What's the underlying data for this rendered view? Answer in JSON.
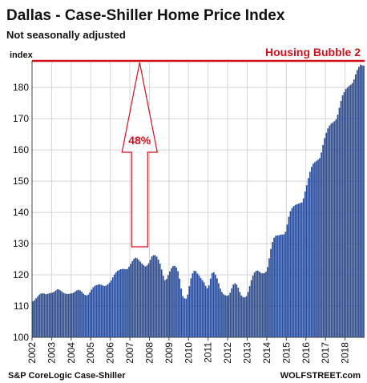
{
  "chart_data": {
    "type": "bar",
    "title": "Dallas - Case-Shiller Home Price Index",
    "subtitle": "Not seasonally adjusted",
    "ylabel": "index",
    "ylim": [
      100,
      188
    ],
    "yticks": [
      100,
      110,
      120,
      130,
      140,
      150,
      160,
      170,
      180
    ],
    "x_tick_labels": [
      "2002",
      "2003",
      "2004",
      "2005",
      "2006",
      "2007",
      "2008",
      "2009",
      "2010",
      "2011",
      "2012",
      "2013",
      "2014",
      "2015",
      "2016",
      "2017",
      "2018"
    ],
    "grid": true,
    "bar_color": "#2d4f9a",
    "annotation_color": "#d0121b",
    "x_start_year": 2002,
    "reference_line": {
      "value": 188.5,
      "label": "Housing Bubble 2"
    },
    "arrow": {
      "year": 2007.5,
      "from": 129,
      "to": 188,
      "label": "48%"
    },
    "source": "S&P CoreLogic Case-Shiller",
    "brand": "WOLFSTREET.com",
    "series": [
      {
        "values": [
          111.5,
          111.9,
          112.5,
          113.1,
          113.7,
          114.0,
          114.1,
          114.0,
          113.8,
          113.9,
          114.1,
          114.2,
          114.3,
          114.6,
          115.0,
          115.4,
          115.3,
          115.0,
          114.6,
          114.2,
          114.0,
          113.9,
          113.9,
          114.0,
          114.1,
          114.3,
          114.7,
          115.0,
          115.2,
          115.0,
          114.6,
          114.0,
          113.6,
          113.4,
          113.7,
          114.4,
          115.3,
          116.0,
          116.5,
          116.7,
          116.9,
          117.0,
          116.8,
          116.6,
          116.4,
          116.6,
          117.0,
          117.5,
          118.2,
          119.2,
          120.1,
          120.8,
          121.3,
          121.6,
          121.8,
          121.9,
          121.9,
          121.8,
          121.9,
          122.6,
          123.5,
          124.4,
          125.1,
          125.5,
          125.3,
          124.8,
          124.2,
          123.6,
          123.1,
          122.7,
          123.0,
          123.7,
          124.8,
          125.9,
          126.3,
          126.3,
          125.8,
          124.9,
          123.6,
          121.7,
          119.7,
          118.3,
          118.7,
          119.9,
          121.1,
          122.1,
          122.8,
          122.9,
          122.4,
          121.2,
          118.8,
          115.6,
          113.2,
          112.5,
          112.4,
          113.7,
          116.4,
          118.9,
          120.5,
          121.3,
          121.2,
          120.4,
          119.8,
          119.0,
          118.3,
          117.6,
          116.5,
          115.7,
          116.6,
          118.8,
          120.6,
          120.8,
          120.1,
          118.9,
          117.3,
          115.6,
          114.5,
          113.8,
          113.5,
          113.3,
          113.5,
          114.3,
          115.7,
          116.9,
          117.3,
          116.9,
          115.9,
          114.5,
          113.4,
          112.9,
          112.8,
          113.2,
          114.5,
          116.4,
          118.3,
          119.8,
          120.8,
          121.3,
          121.4,
          121.0,
          120.6,
          120.5,
          120.6,
          121.0,
          122.5,
          125.3,
          128.3,
          130.5,
          131.9,
          132.5,
          132.6,
          132.7,
          132.9,
          132.9,
          133.0,
          133.8,
          136.1,
          138.6,
          140.4,
          141.4,
          142.0,
          142.4,
          142.6,
          142.8,
          143.0,
          143.2,
          144.5,
          146.7,
          148.7,
          151.0,
          153.0,
          154.6,
          155.6,
          156.1,
          156.5,
          156.9,
          157.4,
          159.2,
          161.6,
          163.8,
          165.5,
          166.9,
          167.8,
          168.4,
          168.8,
          169.2,
          169.8,
          171.3,
          173.5,
          175.7,
          177.5,
          178.5,
          179.5,
          180.0,
          180.5,
          180.9,
          181.4,
          182.6,
          184.2,
          185.6,
          186.6,
          187.3,
          187.1,
          187.0
        ]
      }
    ]
  }
}
